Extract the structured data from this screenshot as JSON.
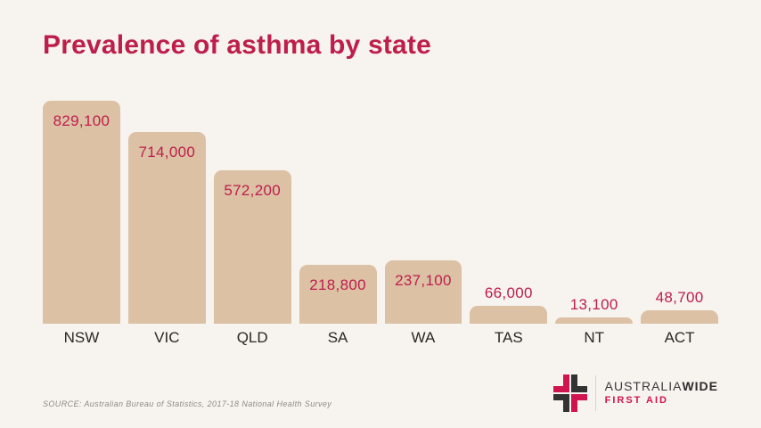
{
  "page": {
    "background": "#f7f3ee"
  },
  "title": {
    "text": "Prevalence of asthma by state",
    "color": "#bd1e4c"
  },
  "chart_data": {
    "type": "bar",
    "title": "Prevalence of asthma by state",
    "categories": [
      "NSW",
      "VIC",
      "QLD",
      "SA",
      "WA",
      "TAS",
      "NT",
      "ACT"
    ],
    "values": [
      829100,
      714000,
      572200,
      218800,
      237100,
      66000,
      13100,
      48700
    ],
    "value_labels": [
      "829,100",
      "714,000",
      "572,200",
      "218,800",
      "237,100",
      "66,000",
      "13,100",
      "48,700"
    ],
    "xlabel": "",
    "ylabel": "",
    "ylim": [
      0,
      830000
    ],
    "grid": false,
    "legend": null,
    "bar_color": "#dcc1a4",
    "value_label_color": "#bd1e4c",
    "category_label_color": "#2b2824",
    "value_label_placement": "inside bar top for tall bars (NSW, VIC, QLD, SA, WA); above bar for short bars (TAS, NT, ACT)"
  },
  "source": {
    "text": "SOURCE: Australian Bureau of Statistics, 2017-18 National Health Survey"
  },
  "logo": {
    "icon": "cross-quadrants-icon",
    "brand_part1": "AUSTRALIA",
    "brand_part2": "WIDE",
    "tagline": "FIRST AID",
    "colors": {
      "pink": "#d01450",
      "dark": "#333333"
    }
  }
}
